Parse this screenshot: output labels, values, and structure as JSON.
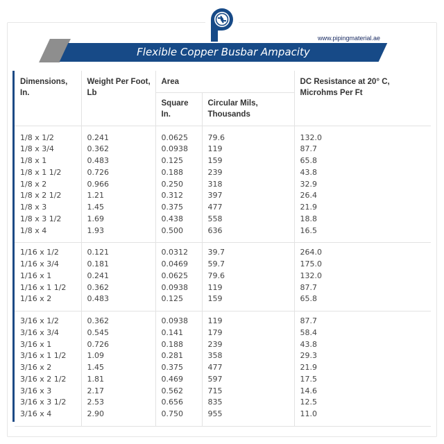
{
  "header": {
    "site_url": "www.pipingmaterial.ae",
    "title": "Flexible Copper Busbar Ampacity"
  },
  "table": {
    "headers": {
      "dimensions": "Dimensions, In.",
      "weight": "Weight Per Foot, Lb",
      "area": "Area",
      "square": "Square In.",
      "circular": "Circular Mils, Thousands",
      "dc_resistance": "DC Resistance at 20° C, Microhms Per Ft"
    },
    "groups": [
      {
        "rows": [
          {
            "dim": "1/8 x 1/2",
            "weight": "0.241",
            "square": "0.0625",
            "circular": "79.6",
            "dc": "132.0"
          },
          {
            "dim": "1/8 x 3/4",
            "weight": "0.362",
            "square": "0.0938",
            "circular": "119",
            "dc": "87.7"
          },
          {
            "dim": "1/8 x 1",
            "weight": "0.483",
            "square": "0.125",
            "circular": "159",
            "dc": "65.8"
          },
          {
            "dim": "1/8 x 1 1/2",
            "weight": "0.726",
            "square": "0.188",
            "circular": "239",
            "dc": "43.8"
          },
          {
            "dim": "1/8 x 2",
            "weight": "0.966",
            "square": "0.250",
            "circular": "318",
            "dc": "32.9"
          },
          {
            "dim": "1/8 x 2 1/2",
            "weight": "1.21",
            "square": "0.312",
            "circular": "397",
            "dc": "26.4"
          },
          {
            "dim": "1/8 x 3",
            "weight": "1.45",
            "square": "0.375",
            "circular": "477",
            "dc": "21.9"
          },
          {
            "dim": "1/8 x 3 1/2",
            "weight": "1.69",
            "square": "0.438",
            "circular": "558",
            "dc": "18.8"
          },
          {
            "dim": "1/8 x 4",
            "weight": "1.93",
            "square": "0.500",
            "circular": "636",
            "dc": "16.5"
          }
        ]
      },
      {
        "rows": [
          {
            "dim": "1/16 x 1/2",
            "weight": "0.121",
            "square": "0.0312",
            "circular": "39.7",
            "dc": "264.0"
          },
          {
            "dim": "1/16 x 3/4",
            "weight": "0.181",
            "square": "0.0469",
            "circular": "59.7",
            "dc": "175.0"
          },
          {
            "dim": "1/16 x 1",
            "weight": "0.241",
            "square": "0.0625",
            "circular": "79.6",
            "dc": "132.0"
          },
          {
            "dim": "1/16 x 1 1/2",
            "weight": "0.362",
            "square": "0.0938",
            "circular": "119",
            "dc": "87.7"
          },
          {
            "dim": "1/16 x 2",
            "weight": "0.483",
            "square": "0.125",
            "circular": "159",
            "dc": "65.8"
          }
        ]
      },
      {
        "rows": [
          {
            "dim": "3/16 x 1/2",
            "weight": "0.362",
            "square": "0.0938",
            "circular": "119",
            "dc": "87.7"
          },
          {
            "dim": "3/16 x 3/4",
            "weight": "0.545",
            "square": "0.141",
            "circular": "179",
            "dc": "58.4"
          },
          {
            "dim": "3/16 x 1",
            "weight": "0.726",
            "square": "0.188",
            "circular": "239",
            "dc": "43.8"
          },
          {
            "dim": "3/16 x 1 1/2",
            "weight": "1.09",
            "square": "0.281",
            "circular": "358",
            "dc": "29.3"
          },
          {
            "dim": "3/16 x 2",
            "weight": "1.45",
            "square": "0.375",
            "circular": "477",
            "dc": "21.9"
          },
          {
            "dim": "3/16 x 2 1/2",
            "weight": "1.81",
            "square": "0.469",
            "circular": "597",
            "dc": "17.5"
          },
          {
            "dim": "3/16 x 3",
            "weight": "2.17",
            "square": "0.562",
            "circular": "715",
            "dc": "14.6"
          },
          {
            "dim": "3/16 x 3 1/2",
            "weight": "2.53",
            "square": "0.656",
            "circular": "835",
            "dc": "12.5"
          },
          {
            "dim": "3/16 x 4",
            "weight": "2.90",
            "square": "0.750",
            "circular": "955",
            "dc": "11.0"
          }
        ]
      }
    ]
  },
  "colors": {
    "brand_blue": "#174a87",
    "banner_gray": "#8e8e8e",
    "url_text": "#1a2c63"
  },
  "icons": {
    "logo": "pm-logo-icon"
  }
}
